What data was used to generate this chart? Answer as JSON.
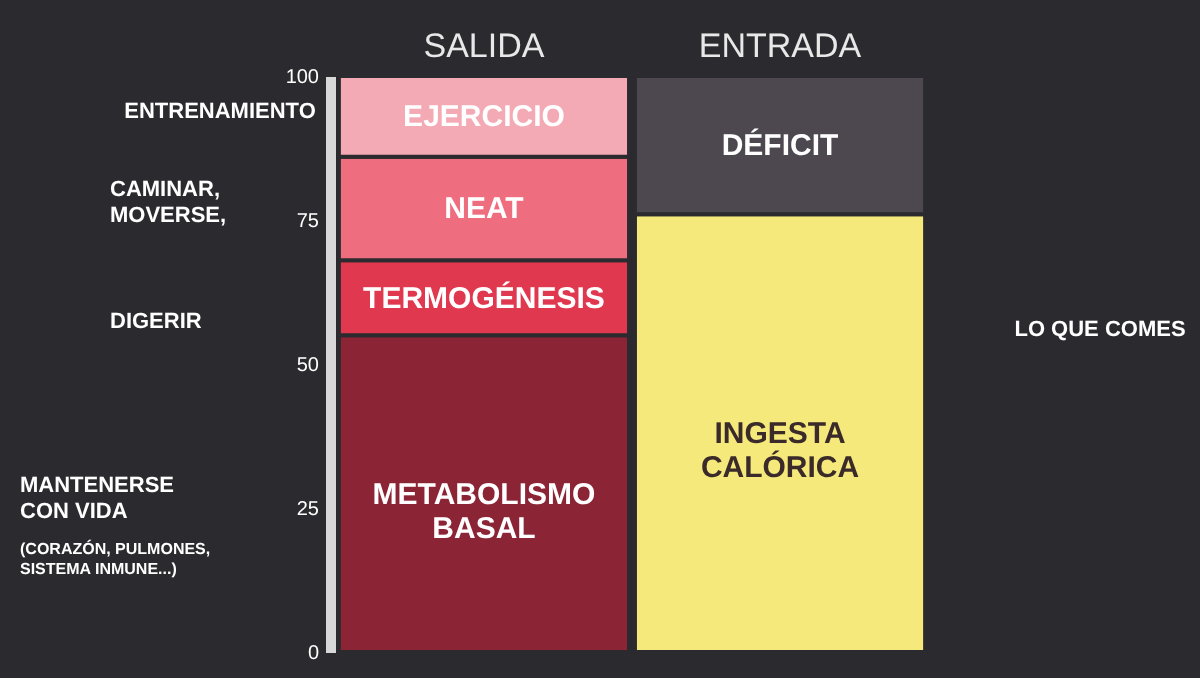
{
  "chart_data": {
    "type": "bar",
    "stacked": true,
    "categories": [
      "SALIDA",
      "ENTRADA"
    ],
    "series": [
      {
        "name": "METABOLISMO\nBASAL",
        "color": "#8b2535",
        "values": [
          55,
          null
        ]
      },
      {
        "name": "TERMOGÉNESIS",
        "color": "#e0394f",
        "values": [
          13,
          null
        ]
      },
      {
        "name": "NEAT",
        "color": "#ee6e80",
        "values": [
          18,
          null
        ]
      },
      {
        "name": "EJERCICIO",
        "color": "#f4aab4",
        "values": [
          14,
          null
        ]
      },
      {
        "name": "INGESTA\nCALÓRICA",
        "color": "#f4e97a",
        "values": [
          null,
          76
        ]
      },
      {
        "name": "DÉFICIT",
        "color": "#4d4850",
        "values": [
          null,
          24
        ]
      }
    ],
    "ylim": [
      0,
      100
    ],
    "yticks": [
      0,
      25,
      50,
      75,
      100
    ],
    "grid": false,
    "annotations": [
      "ENTRENAMIENTO",
      "CAMINAR,\nMOVERSE,",
      "DIGERIR",
      "MANTENERSE\nCON VIDA",
      "(CORAZÓN, PULMONES,\nSISTEMA INMUNE...)",
      "LO QUE COMES"
    ]
  }
}
